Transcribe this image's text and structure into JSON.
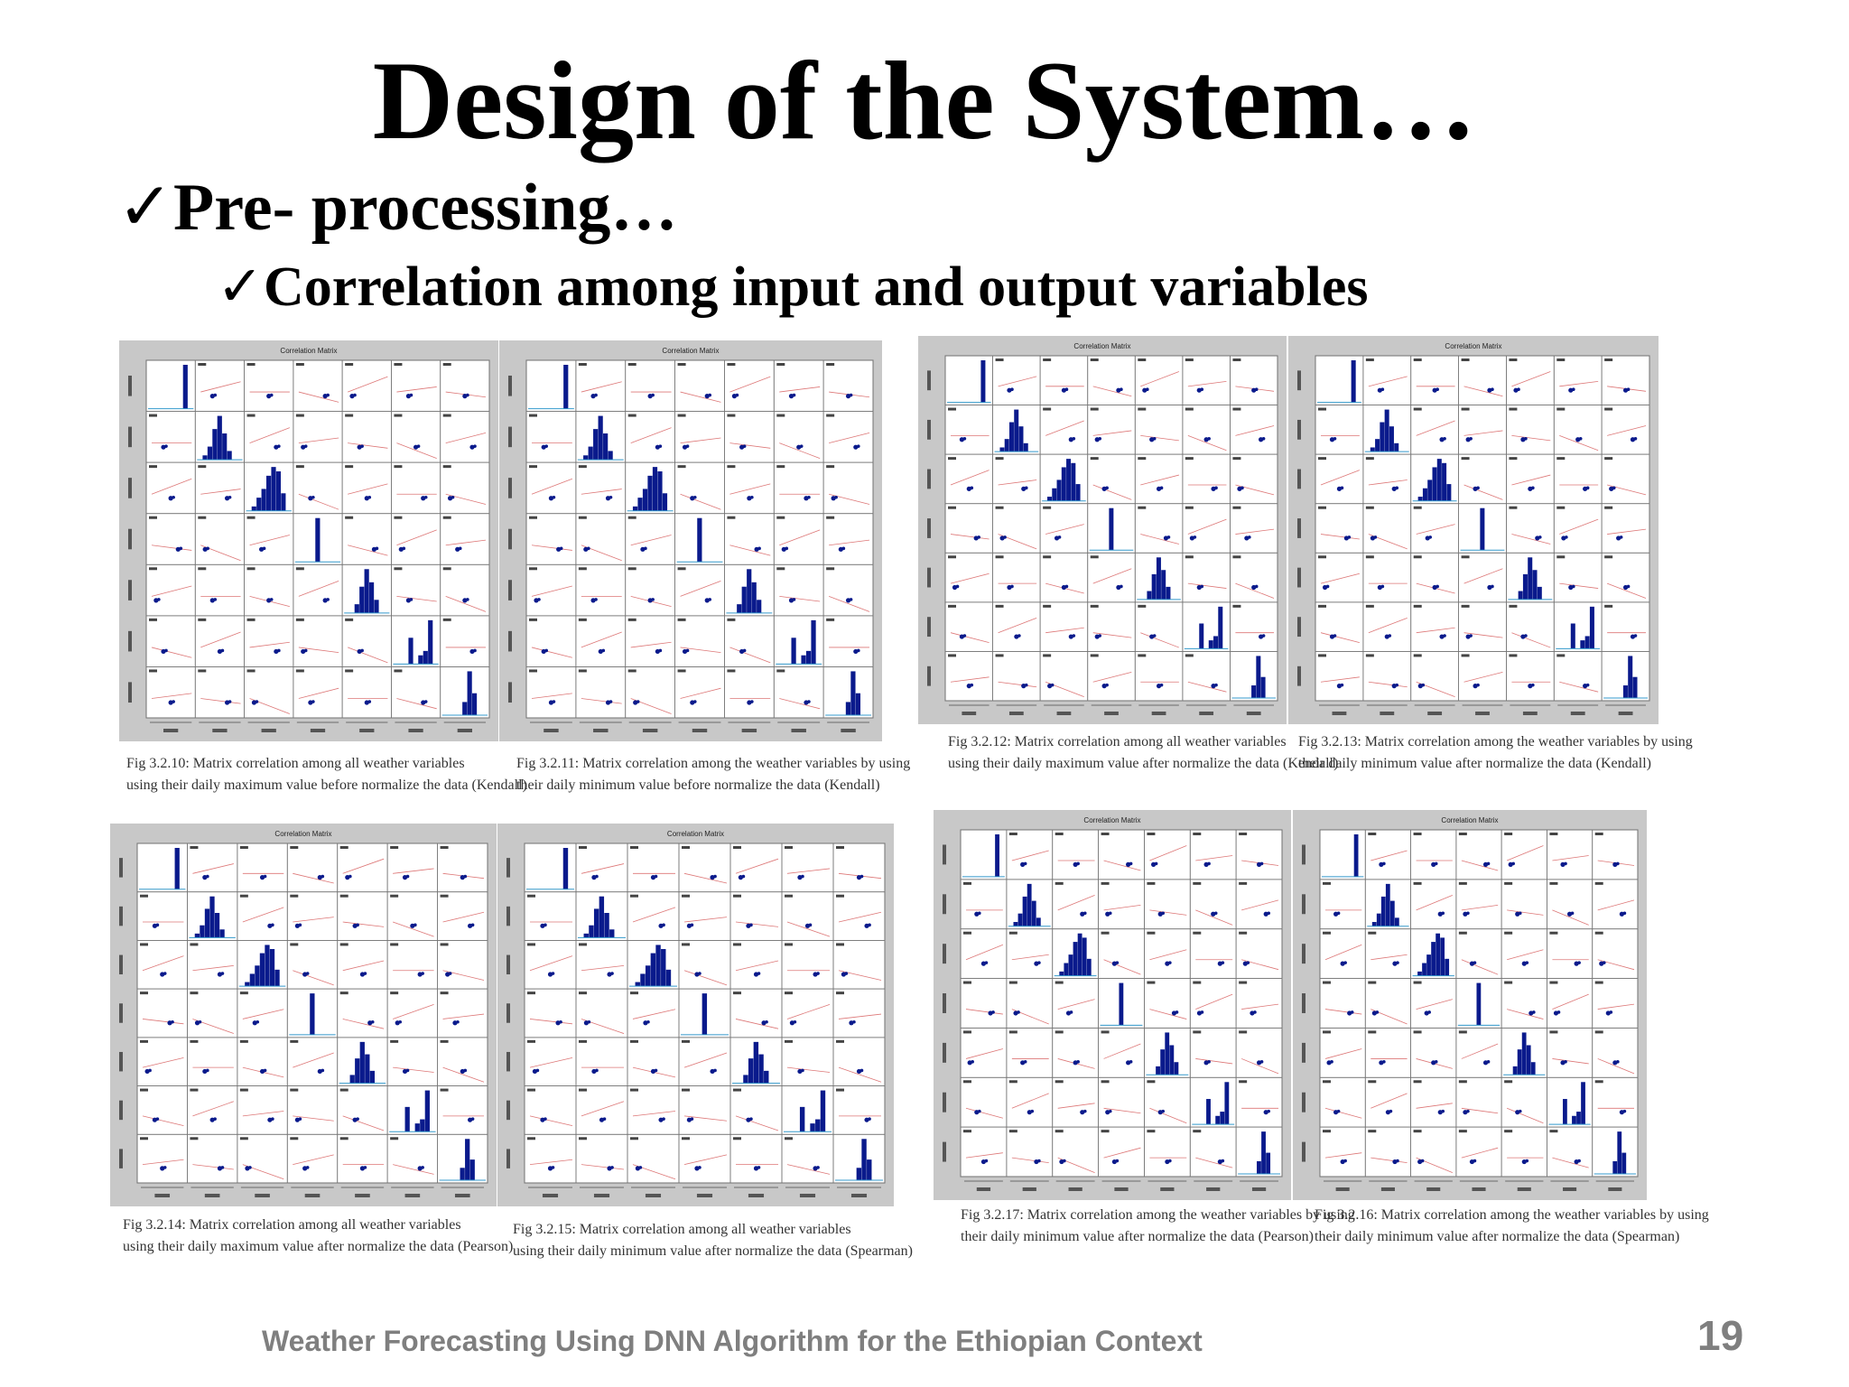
{
  "slide": {
    "title": "Design of the System…",
    "check_glyph": "✓",
    "bullet1": "Pre- processing…",
    "bullet2": "Correlation among input and output variables",
    "footer": "Weather Forecasting Using DNN Algorithm for the Ethiopian Context",
    "page_number": "19"
  },
  "figures": [
    {
      "panel_title": "Correlation Matrix",
      "caption_line1": "Fig 3.2.10: Matrix correlation among all weather variables",
      "caption_line2": "using their daily maximum value before normalize the data (Kendall)"
    },
    {
      "panel_title": "Correlation Matrix",
      "caption_line1": "Fig 3.2.11: Matrix correlation among the weather variables by using",
      "caption_line2": "their daily minimum value before normalize the data (Kendall)"
    },
    {
      "panel_title": "Correlation Matrix",
      "caption_line1": "Fig 3.2.12: Matrix correlation among all weather variables",
      "caption_line2": "using their daily maximum value after normalize the data (Kendall)"
    },
    {
      "panel_title": "Correlation Matrix",
      "caption_line1": "Fig 3.2.13: Matrix correlation among the weather variables by using",
      "caption_line2": "their daily minimum value after normalize the data (Kendall)"
    },
    {
      "panel_title": "Correlation Matrix",
      "caption_line1": "Fig 3.2.14: Matrix correlation among all weather variables",
      "caption_line2": "using their daily maximum value after normalize the data (Pearson)"
    },
    {
      "panel_title": "Correlation Matrix",
      "caption_line1": "Fig 3.2.15: Matrix correlation among all weather variables",
      "caption_line2": "using their daily minimum value after normalize the data (Spearman)"
    },
    {
      "panel_title": "Correlation Matrix",
      "caption_line1": "Fig 3.2.17: Matrix correlation among the weather variables by using",
      "caption_line2": "their daily minimum value after normalize the data (Pearson)"
    },
    {
      "panel_title": "Correlation Matrix",
      "caption_line1": "Fig 3.2.16: Matrix correlation among the weather variables by using",
      "caption_line2": "their daily minimum value after normalize the data (Spearman)"
    }
  ],
  "colors": {
    "histogram": "#0a1a8c",
    "panel_bg": "#c8c8c8",
    "plot_bg": "#ffffff",
    "text_gray": "#7f7f7f"
  }
}
